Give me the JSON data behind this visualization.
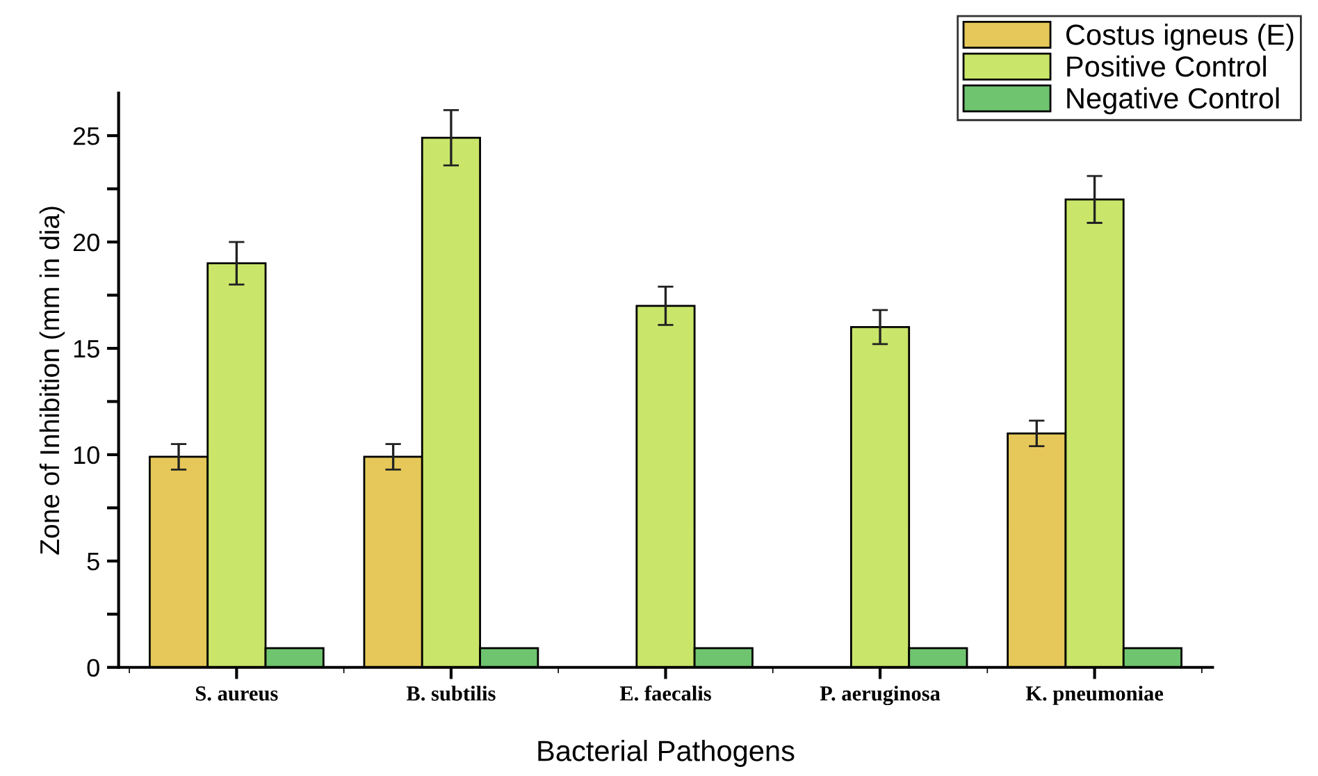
{
  "chart_data": {
    "type": "bar",
    "xlabel": "Bacterial Pathogens",
    "ylabel": "Zone of Inhibition (mm in dia)",
    "categories": [
      "S. aureus",
      "B. subtilis",
      "E. faecalis",
      "P. aeruginosa",
      "K. pneumoniae"
    ],
    "series": [
      {
        "name": "Costus igneus (E)",
        "color": "#e6c85a",
        "values": [
          9.9,
          9.9,
          null,
          null,
          11
        ],
        "errors": [
          0.6,
          0.6,
          null,
          null,
          0.6
        ]
      },
      {
        "name": "Positive Control",
        "color": "#c9e66a",
        "values": [
          19,
          24.9,
          17,
          16,
          22
        ],
        "errors": [
          1,
          1.3,
          0.9,
          0.8,
          1.1
        ]
      },
      {
        "name": "Negative Control",
        "color": "#6fc46f",
        "values": [
          0.9,
          0.9,
          0.9,
          0.9,
          0.9
        ]
      }
    ],
    "ylim": [
      0,
      27
    ],
    "yticks": [
      0,
      {
        "value": 2.5,
        "label": null
      },
      5,
      {
        "value": 7.5,
        "label": null
      },
      10,
      {
        "value": 12.5,
        "label": null
      },
      15,
      {
        "value": 17.5,
        "label": null
      },
      20,
      {
        "value": 22.5,
        "label": null
      },
      25
    ],
    "legend": "top right",
    "grid": false
  }
}
